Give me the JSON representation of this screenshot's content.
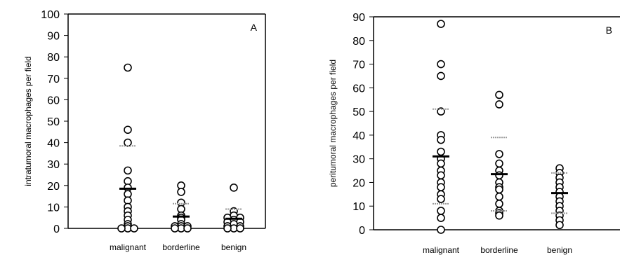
{
  "chart_data": [
    {
      "type": "scatter",
      "panel_label": "A",
      "ylabel": "intratumoral macrophages per field",
      "ylim": [
        0,
        100
      ],
      "yticks": [
        0,
        10,
        20,
        30,
        40,
        50,
        60,
        70,
        80,
        90,
        100
      ],
      "categories": [
        "malignant",
        "borderline",
        "benign"
      ],
      "groups": [
        {
          "category": "malignant",
          "points": [
            [
              0,
              75
            ],
            [
              0,
              46
            ],
            [
              0,
              40
            ],
            [
              0,
              27
            ],
            [
              0,
              22
            ],
            [
              0,
              19
            ],
            [
              0,
              16
            ],
            [
              0,
              13
            ],
            [
              0,
              10
            ],
            [
              0,
              8
            ],
            [
              0,
              6
            ],
            [
              0,
              4
            ],
            [
              0,
              2
            ],
            [
              0,
              1
            ],
            [
              0,
              0
            ],
            [
              -1,
              0
            ],
            [
              1,
              0
            ]
          ],
          "mean": 18.5,
          "sd_upper": 38.5,
          "sd_lower": 0
        },
        {
          "category": "borderline",
          "points": [
            [
              0,
              20
            ],
            [
              0,
              17
            ],
            [
              0,
              12
            ],
            [
              0,
              9
            ],
            [
              0,
              6
            ],
            [
              0,
              5
            ],
            [
              0,
              4
            ],
            [
              0,
              2
            ],
            [
              0,
              1
            ],
            [
              -1,
              1
            ],
            [
              1,
              1
            ],
            [
              0,
              0
            ],
            [
              -1,
              0
            ],
            [
              1,
              0
            ]
          ],
          "mean": 5.5,
          "sd_upper": 11.5,
          "sd_lower": 0
        },
        {
          "category": "benign",
          "points": [
            [
              0,
              19
            ],
            [
              0,
              8
            ],
            [
              0,
              6
            ],
            [
              -1,
              5
            ],
            [
              1,
              5
            ],
            [
              0,
              4
            ],
            [
              -1,
              3
            ],
            [
              1,
              3
            ],
            [
              0,
              2
            ],
            [
              -1,
              1
            ],
            [
              1,
              1
            ],
            [
              0,
              0
            ],
            [
              -1,
              0
            ],
            [
              1,
              0
            ]
          ],
          "mean": 4.5,
          "sd_upper": 9,
          "sd_lower": 0
        }
      ]
    },
    {
      "type": "scatter",
      "panel_label": "B",
      "ylabel": "peritumoral macrophages per field",
      "ylim": [
        0,
        90
      ],
      "yticks": [
        0,
        10,
        20,
        30,
        40,
        50,
        60,
        70,
        80,
        90
      ],
      "categories": [
        "malignant",
        "borderline",
        "benign"
      ],
      "groups": [
        {
          "category": "malignant",
          "points": [
            [
              0,
              87
            ],
            [
              0,
              70
            ],
            [
              0,
              65
            ],
            [
              0,
              50
            ],
            [
              0,
              40
            ],
            [
              0,
              38
            ],
            [
              0,
              33
            ],
            [
              0,
              30
            ],
            [
              0,
              28
            ],
            [
              0,
              25
            ],
            [
              0,
              23
            ],
            [
              0,
              20
            ],
            [
              0,
              18
            ],
            [
              0,
              15
            ],
            [
              0,
              13
            ],
            [
              0,
              8
            ],
            [
              0,
              5
            ],
            [
              0,
              0
            ]
          ],
          "mean": 31,
          "sd_upper": 51,
          "sd_lower": 11
        },
        {
          "category": "borderline",
          "points": [
            [
              0,
              57
            ],
            [
              0,
              53
            ],
            [
              0,
              32
            ],
            [
              0,
              28
            ],
            [
              0,
              25
            ],
            [
              0,
              23
            ],
            [
              0,
              20
            ],
            [
              0,
              18
            ],
            [
              0,
              17
            ],
            [
              0,
              14
            ],
            [
              0,
              11
            ],
            [
              0,
              8
            ],
            [
              0,
              7
            ],
            [
              0,
              6
            ]
          ],
          "mean": 23.5,
          "sd_upper": 39,
          "sd_lower": 8
        },
        {
          "category": "benign",
          "points": [
            [
              0,
              26
            ],
            [
              0,
              24
            ],
            [
              0,
              22
            ],
            [
              0,
              20
            ],
            [
              0,
              18
            ],
            [
              0,
              16
            ],
            [
              0,
              14
            ],
            [
              0,
              12
            ],
            [
              0,
              10
            ],
            [
              0,
              8
            ],
            [
              0,
              6
            ],
            [
              0,
              4
            ],
            [
              0,
              2
            ]
          ],
          "mean": 15.5,
          "sd_upper": 24,
          "sd_lower": 7
        }
      ]
    }
  ]
}
